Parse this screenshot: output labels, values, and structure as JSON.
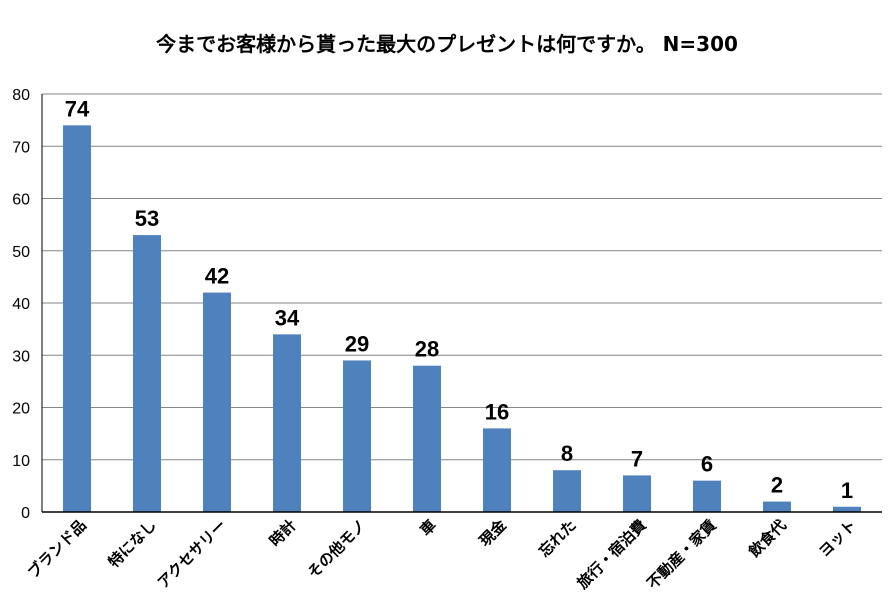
{
  "chart_data": {
    "type": "bar",
    "title": "今までお客様から貰った最大のプレゼントは何ですか。 N=300",
    "xlabel": "",
    "ylabel": "",
    "ylim": [
      0,
      80
    ],
    "yticks": [
      0,
      10,
      20,
      30,
      40,
      50,
      60,
      70,
      80
    ],
    "grid": true,
    "bar_color": "#4f81bd",
    "categories": [
      "ブランド品",
      "特になし",
      "アクセサリー",
      "時計",
      "その他モノ",
      "車",
      "現金",
      "忘れた",
      "旅行・宿泊費",
      "不動産・家賃",
      "飲食代",
      "ヨット"
    ],
    "values": [
      74,
      53,
      42,
      34,
      29,
      28,
      16,
      8,
      7,
      6,
      2,
      1
    ]
  }
}
